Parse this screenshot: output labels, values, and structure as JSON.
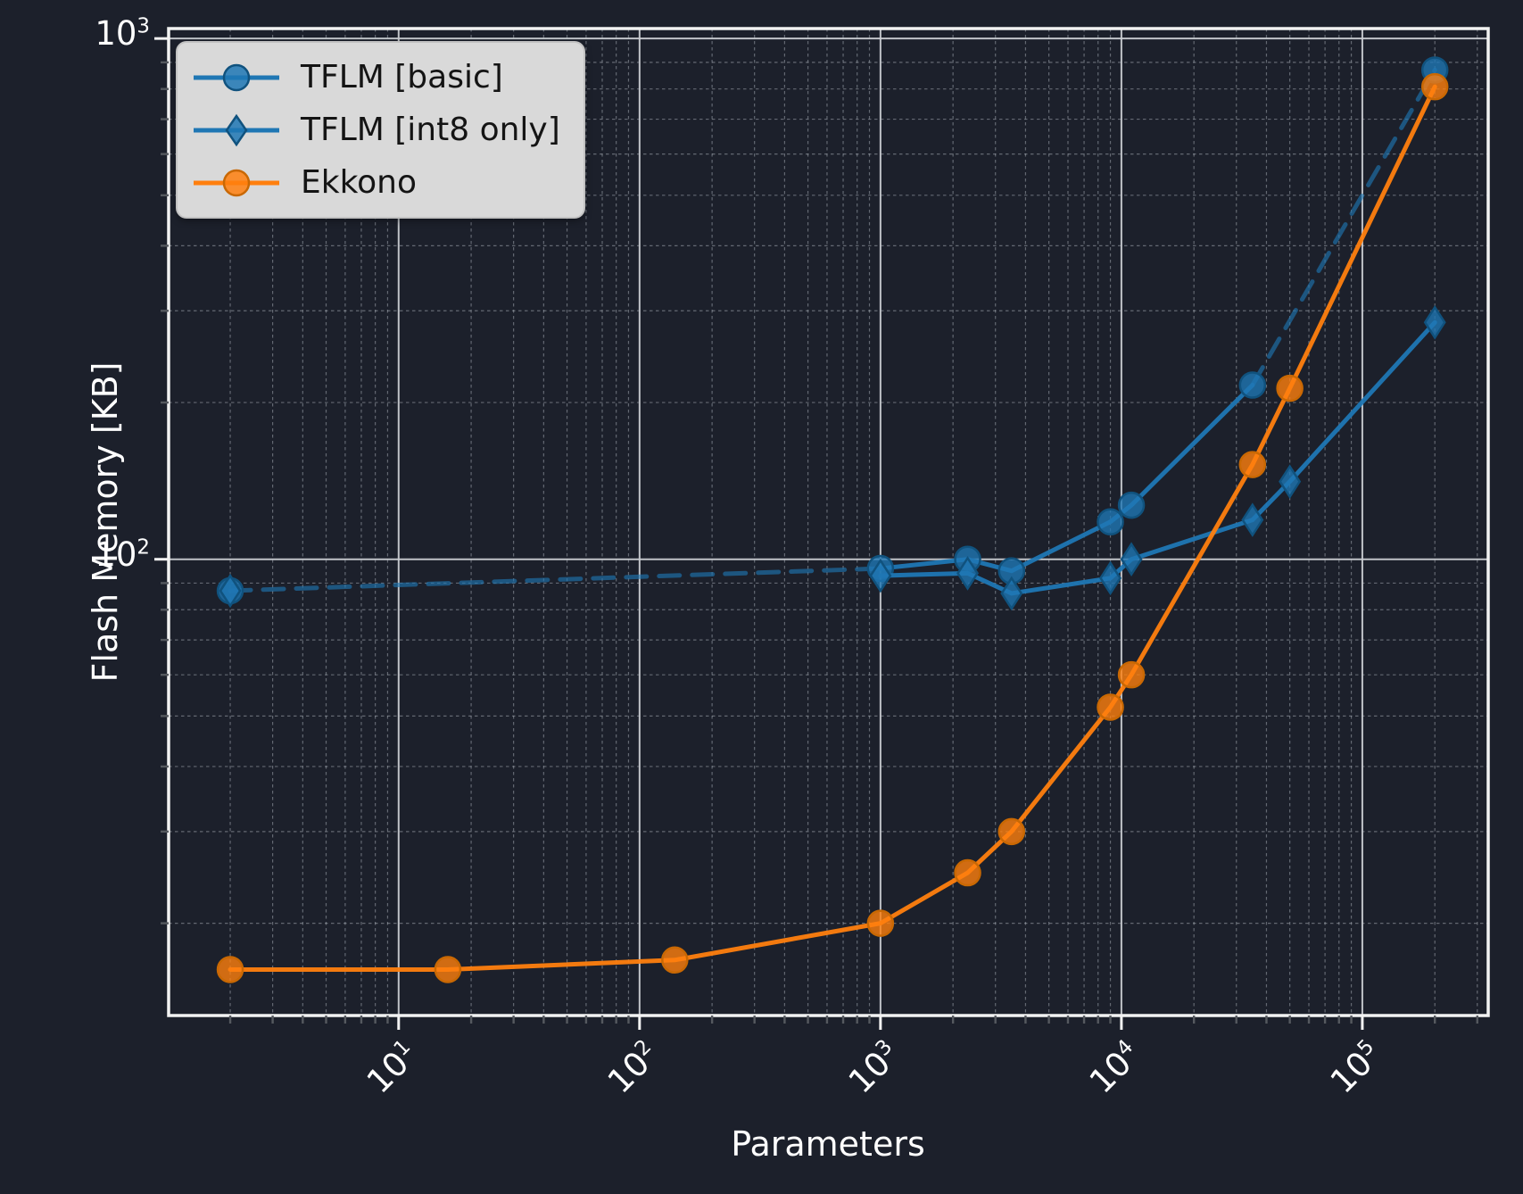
{
  "figure": {
    "xlabel": "Parameters",
    "ylabel": "Flash Memory [KB]",
    "legend": [
      {
        "label": "TFLM [basic]",
        "color": "#1f77b4",
        "edge": "#10527e",
        "marker": "circle"
      },
      {
        "label": "TFLM [int8 only]",
        "color": "#1f77b4",
        "edge": "#10527e",
        "marker": "diamond"
      },
      {
        "label": "Ekkono",
        "color": "#ff7f0e",
        "edge": "#c96803",
        "marker": "circle"
      }
    ]
  },
  "chart_data": {
    "type": "line",
    "title": "",
    "xlabel": "Parameters",
    "ylabel": "Flash Memory [KB]",
    "xscale": "log",
    "yscale": "log",
    "xlim": [
      1.11,
      333000
    ],
    "ylim": [
      13.3,
      1045
    ],
    "x_tick_exponents": [
      1,
      2,
      3,
      4,
      5
    ],
    "y_tick_exponents": [
      2,
      3
    ],
    "grid": {
      "major": true,
      "minor": true
    },
    "legend_position": "upper left",
    "series": [
      {
        "name": "TFLM [basic]",
        "color": "#1f77b4",
        "edge": "#10527e",
        "marker": "circle",
        "points": [
          [
            2,
            87
          ],
          [
            1000,
            96
          ],
          [
            2300,
            100
          ],
          [
            3500,
            95
          ],
          [
            9000,
            118
          ],
          [
            11000,
            127
          ],
          [
            35000,
            216
          ],
          [
            200000,
            870
          ]
        ],
        "segments": [
          {
            "style": "dashed",
            "from": 0,
            "to": 1
          },
          {
            "style": "solid",
            "from": 1,
            "to": 6
          },
          {
            "style": "dashed",
            "from": 6,
            "to": 7
          }
        ]
      },
      {
        "name": "TFLM [int8 only]",
        "color": "#1f77b4",
        "edge": "#10527e",
        "marker": "diamond",
        "points": [
          [
            2,
            87
          ],
          [
            1000,
            93
          ],
          [
            2300,
            94
          ],
          [
            3500,
            86
          ],
          [
            9000,
            92
          ],
          [
            11000,
            100
          ],
          [
            35000,
            119
          ],
          [
            50000,
            141
          ],
          [
            200000,
            285
          ]
        ],
        "segments": [
          {
            "style": "solid",
            "from": 1,
            "to": 8
          }
        ]
      },
      {
        "name": "Ekkono",
        "color": "#ff7f0e",
        "edge": "#c96803",
        "marker": "circle",
        "points": [
          [
            2,
            16.3
          ],
          [
            16,
            16.3
          ],
          [
            140,
            17
          ],
          [
            1000,
            20
          ],
          [
            2300,
            25
          ],
          [
            3500,
            30
          ],
          [
            9000,
            52
          ],
          [
            11000,
            60
          ],
          [
            35000,
            152
          ],
          [
            50000,
            213
          ],
          [
            200000,
            808
          ]
        ],
        "segments": [
          {
            "style": "solid",
            "from": 0,
            "to": 10
          }
        ]
      }
    ],
    "colors": {
      "background": "#1c202b",
      "spine": "#f2f2f2",
      "grid_major": "#c9ccd1",
      "grid_minor": "#aab0b8",
      "tick_major": "#f2f2f2",
      "tick_minor": "#55595f",
      "text": "#ffffff",
      "legend_bg": "#d9d9d9",
      "legend_text": "#141414"
    }
  }
}
